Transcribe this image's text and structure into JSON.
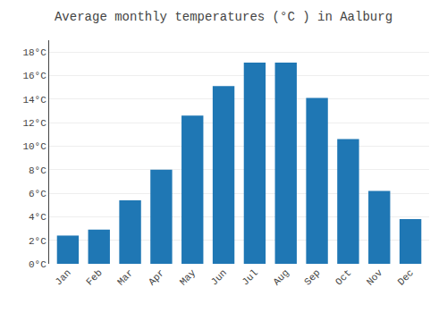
{
  "chart_data": {
    "type": "bar",
    "title": "Average monthly temperatures (°C ) in Aalburg",
    "categories": [
      "Jan",
      "Feb",
      "Mar",
      "Apr",
      "May",
      "Jun",
      "Jul",
      "Aug",
      "Sep",
      "Oct",
      "Nov",
      "Dec"
    ],
    "values": [
      2.4,
      2.9,
      5.4,
      8.0,
      12.6,
      15.1,
      17.1,
      17.1,
      14.1,
      10.6,
      6.2,
      3.8
    ],
    "ylim": [
      0,
      19
    ],
    "yticks": [
      {
        "value": 0,
        "label": "0°C"
      },
      {
        "value": 2,
        "label": "2°C"
      },
      {
        "value": 4,
        "label": "4°C"
      },
      {
        "value": 6,
        "label": "6°C"
      },
      {
        "value": 8,
        "label": "8°C"
      },
      {
        "value": 10,
        "label": "10°C"
      },
      {
        "value": 12,
        "label": "12°C"
      },
      {
        "value": 14,
        "label": "14°C"
      },
      {
        "value": 16,
        "label": "16°C"
      },
      {
        "value": 18,
        "label": "18°C"
      }
    ],
    "grid": true
  }
}
